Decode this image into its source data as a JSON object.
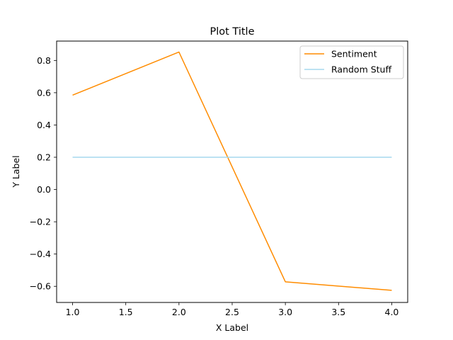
{
  "chart_data": {
    "type": "line",
    "title": "Plot Title",
    "xlabel": "X Label",
    "ylabel": "Y Label",
    "x": [
      1.0,
      2.0,
      3.0,
      4.0
    ],
    "xlim": [
      0.85,
      4.15
    ],
    "ylim": [
      -0.7,
      0.92
    ],
    "xticks": [
      1.0,
      1.5,
      2.0,
      2.5,
      3.0,
      3.5,
      4.0
    ],
    "xtick_labels": [
      "1.0",
      "1.5",
      "2.0",
      "2.5",
      "3.0",
      "3.5",
      "4.0"
    ],
    "yticks": [
      -0.6,
      -0.4,
      -0.2,
      0.0,
      0.2,
      0.4,
      0.6,
      0.8
    ],
    "ytick_labels": [
      "−0.6",
      "−0.4",
      "−0.2",
      "0.0",
      "0.2",
      "0.4",
      "0.6",
      "0.8"
    ],
    "grid": false,
    "legend_position": "top-right",
    "series": [
      {
        "name": "Sentiment",
        "color": "#ff8c00",
        "values": [
          0.585,
          0.852,
          -0.572,
          -0.625
        ]
      },
      {
        "name": "Random Stuff",
        "color": "#a6d8ee",
        "values": [
          0.2,
          0.2,
          0.2,
          0.2
        ]
      }
    ]
  }
}
